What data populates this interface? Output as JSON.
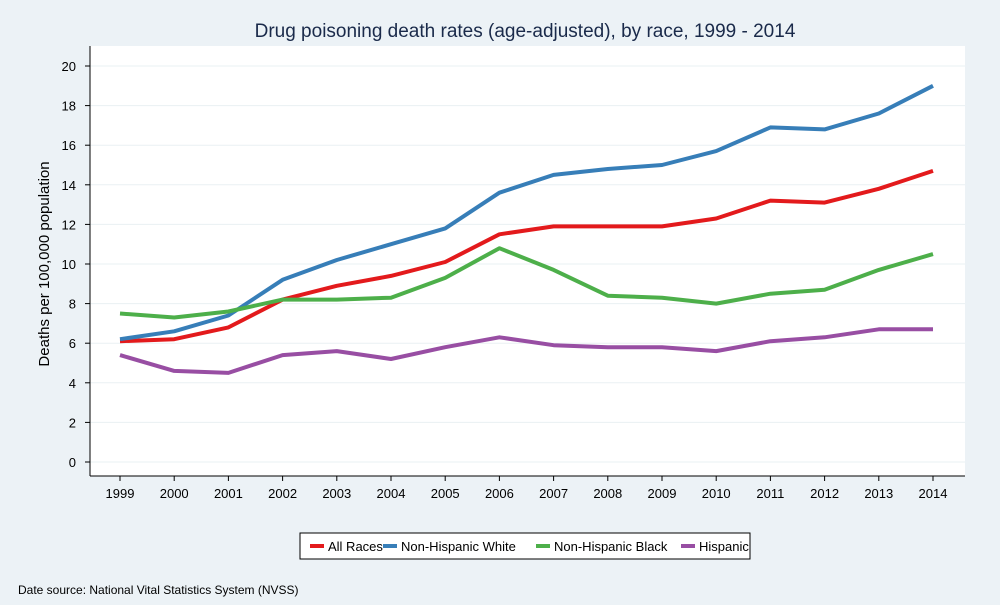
{
  "chart_data": {
    "type": "line",
    "title": "Drug poisoning death rates (age-adjusted), by race, 1999 - 2014",
    "xlabel": "",
    "ylabel": "Deaths per 100,000 population",
    "x": [
      1999,
      2000,
      2001,
      2002,
      2003,
      2004,
      2005,
      2006,
      2007,
      2008,
      2009,
      2010,
      2011,
      2012,
      2013,
      2014
    ],
    "xticks": [
      "1999",
      "2000",
      "2001",
      "2002",
      "2003",
      "2004",
      "2005",
      "2006",
      "2007",
      "2008",
      "2009",
      "2010",
      "2011",
      "2012",
      "2013",
      "2014"
    ],
    "yticks": [
      "0",
      "2",
      "4",
      "6",
      "8",
      "10",
      "12",
      "14",
      "16",
      "18",
      "20"
    ],
    "ylim": [
      0,
      20
    ],
    "grid": true,
    "legend_position": "bottom",
    "series": [
      {
        "name": "All Races",
        "color": "#E31A1C",
        "values": [
          6.1,
          6.2,
          6.8,
          8.2,
          8.9,
          9.4,
          10.1,
          11.5,
          11.9,
          11.9,
          11.9,
          12.3,
          13.2,
          13.1,
          13.8,
          14.7
        ]
      },
      {
        "name": "Non-Hispanic White",
        "color": "#377EB8",
        "values": [
          6.2,
          6.6,
          7.4,
          9.2,
          10.2,
          11.0,
          11.8,
          13.6,
          14.5,
          14.8,
          15.0,
          15.7,
          16.9,
          16.8,
          17.6,
          19.0
        ]
      },
      {
        "name": "Non-Hispanic Black",
        "color": "#4DAF4A",
        "values": [
          7.5,
          7.3,
          7.6,
          8.2,
          8.2,
          8.3,
          9.3,
          10.8,
          9.7,
          8.4,
          8.3,
          8.0,
          8.5,
          8.7,
          9.7,
          10.5
        ]
      },
      {
        "name": "Hispanic",
        "color": "#984EA3",
        "values": [
          5.4,
          4.6,
          4.5,
          5.4,
          5.6,
          5.2,
          5.8,
          6.3,
          5.9,
          5.8,
          5.8,
          5.6,
          6.1,
          6.3,
          6.7,
          6.7
        ]
      }
    ],
    "source_note": "Date source: National Vital Statistics System (NVSS)"
  }
}
